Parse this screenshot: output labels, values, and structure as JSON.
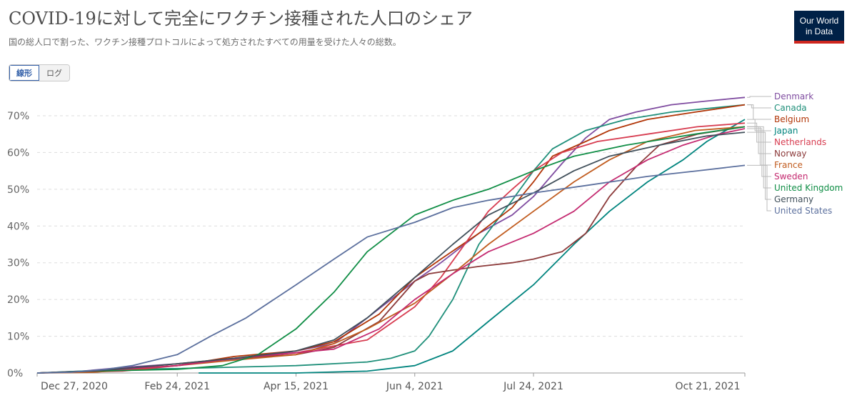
{
  "header": {
    "title": "COVID-19に対して完全にワクチン接種された人口のシェア",
    "subtitle": "国の総人口で割った、ワクチン接種プロトコルによって処方されたすべての用量を受けた人々の総数。",
    "logo_line1": "Our World",
    "logo_line2": "in Data",
    "logo_bg": "#002147",
    "logo_accent": "#ce261e"
  },
  "scale_toggle": {
    "linear_label": "線形",
    "log_label": "ログ",
    "active": "linear"
  },
  "chart_data": {
    "type": "line",
    "title": "COVID-19に対して完全にワクチン接種された人口のシェア",
    "xlabel": "",
    "ylabel": "",
    "x_range": [
      "2020-12-27",
      "2021-10-21"
    ],
    "ylim": [
      0,
      0.75
    ],
    "y_ticks": [
      0,
      0.1,
      0.2,
      0.3,
      0.4,
      0.5,
      0.6,
      0.7
    ],
    "y_tick_labels": [
      "0%",
      "10%",
      "20%",
      "30%",
      "40%",
      "50%",
      "60%",
      "70%"
    ],
    "x_ticks": [
      "2020-12-27",
      "2021-02-24",
      "2021-04-15",
      "2021-06-04",
      "2021-07-24",
      "2021-10-21"
    ],
    "x_tick_labels": [
      "Dec 27, 2020",
      "Feb 24, 2021",
      "Apr 15, 2021",
      "Jun 4, 2021",
      "Jul 24, 2021",
      "Oct 21, 2021"
    ],
    "grid": "horizontal-dashed",
    "legend_position": "right",
    "series": [
      {
        "name": "Denmark",
        "color": "#7f4ca0",
        "points": [
          [
            "2020-12-27",
            0
          ],
          [
            "2021-01-15",
            0.005
          ],
          [
            "2021-02-01",
            0.015
          ],
          [
            "2021-02-24",
            0.025
          ],
          [
            "2021-03-15",
            0.035
          ],
          [
            "2021-04-01",
            0.045
          ],
          [
            "2021-04-15",
            0.06
          ],
          [
            "2021-05-01",
            0.08
          ],
          [
            "2021-05-15",
            0.15
          ],
          [
            "2021-06-04",
            0.25
          ],
          [
            "2021-06-15",
            0.3
          ],
          [
            "2021-07-01",
            0.38
          ],
          [
            "2021-07-15",
            0.43
          ],
          [
            "2021-07-24",
            0.48
          ],
          [
            "2021-08-05",
            0.57
          ],
          [
            "2021-08-15",
            0.64
          ],
          [
            "2021-08-25",
            0.69
          ],
          [
            "2021-09-05",
            0.71
          ],
          [
            "2021-09-20",
            0.73
          ],
          [
            "2021-10-05",
            0.74
          ],
          [
            "2021-10-21",
            0.75
          ]
        ]
      },
      {
        "name": "Canada",
        "color": "#1f8f7a",
        "points": [
          [
            "2020-12-27",
            0
          ],
          [
            "2021-02-01",
            0.01
          ],
          [
            "2021-02-24",
            0.012
          ],
          [
            "2021-04-15",
            0.02
          ],
          [
            "2021-05-15",
            0.03
          ],
          [
            "2021-05-25",
            0.04
          ],
          [
            "2021-06-04",
            0.06
          ],
          [
            "2021-06-10",
            0.1
          ],
          [
            "2021-06-20",
            0.2
          ],
          [
            "2021-07-01",
            0.35
          ],
          [
            "2021-07-15",
            0.47
          ],
          [
            "2021-07-24",
            0.55
          ],
          [
            "2021-08-01",
            0.61
          ],
          [
            "2021-08-15",
            0.66
          ],
          [
            "2021-09-01",
            0.69
          ],
          [
            "2021-09-20",
            0.71
          ],
          [
            "2021-10-21",
            0.73
          ]
        ]
      },
      {
        "name": "Belgium",
        "color": "#b13507",
        "points": [
          [
            "2020-12-27",
            0
          ],
          [
            "2021-01-20",
            0.005
          ],
          [
            "2021-02-24",
            0.02
          ],
          [
            "2021-03-20",
            0.045
          ],
          [
            "2021-04-15",
            0.06
          ],
          [
            "2021-05-01",
            0.085
          ],
          [
            "2021-05-20",
            0.16
          ],
          [
            "2021-06-04",
            0.26
          ],
          [
            "2021-06-15",
            0.31
          ],
          [
            "2021-07-01",
            0.38
          ],
          [
            "2021-07-15",
            0.45
          ],
          [
            "2021-07-24",
            0.52
          ],
          [
            "2021-08-01",
            0.59
          ],
          [
            "2021-08-15",
            0.63
          ],
          [
            "2021-08-25",
            0.66
          ],
          [
            "2021-09-10",
            0.69
          ],
          [
            "2021-09-30",
            0.71
          ],
          [
            "2021-10-21",
            0.73
          ]
        ]
      },
      {
        "name": "Japan",
        "color": "#00847e",
        "points": [
          [
            "2021-03-05",
            0
          ],
          [
            "2021-04-15",
            0.0
          ],
          [
            "2021-05-15",
            0.005
          ],
          [
            "2021-06-04",
            0.02
          ],
          [
            "2021-06-20",
            0.06
          ],
          [
            "2021-07-05",
            0.14
          ],
          [
            "2021-07-24",
            0.24
          ],
          [
            "2021-08-10",
            0.35
          ],
          [
            "2021-08-25",
            0.44
          ],
          [
            "2021-09-10",
            0.52
          ],
          [
            "2021-09-25",
            0.58
          ],
          [
            "2021-10-05",
            0.63
          ],
          [
            "2021-10-21",
            0.69
          ]
        ]
      },
      {
        "name": "Netherlands",
        "color": "#d73c50",
        "points": [
          [
            "2020-12-27",
            0
          ],
          [
            "2021-02-01",
            0.005
          ],
          [
            "2021-02-24",
            0.02
          ],
          [
            "2021-03-20",
            0.04
          ],
          [
            "2021-04-15",
            0.055
          ],
          [
            "2021-05-15",
            0.09
          ],
          [
            "2021-06-04",
            0.18
          ],
          [
            "2021-06-15",
            0.26
          ],
          [
            "2021-06-25",
            0.35
          ],
          [
            "2021-07-05",
            0.44
          ],
          [
            "2021-07-15",
            0.5
          ],
          [
            "2021-07-24",
            0.55
          ],
          [
            "2021-08-05",
            0.6
          ],
          [
            "2021-08-20",
            0.63
          ],
          [
            "2021-09-10",
            0.65
          ],
          [
            "2021-10-01",
            0.67
          ],
          [
            "2021-10-21",
            0.68
          ]
        ]
      },
      {
        "name": "Norway",
        "color": "#8c3a3a",
        "points": [
          [
            "2020-12-27",
            0
          ],
          [
            "2021-01-20",
            0.005
          ],
          [
            "2021-02-24",
            0.025
          ],
          [
            "2021-03-20",
            0.04
          ],
          [
            "2021-04-15",
            0.05
          ],
          [
            "2021-05-01",
            0.07
          ],
          [
            "2021-05-20",
            0.14
          ],
          [
            "2021-06-04",
            0.25
          ],
          [
            "2021-06-10",
            0.27
          ],
          [
            "2021-06-20",
            0.28
          ],
          [
            "2021-07-01",
            0.29
          ],
          [
            "2021-07-15",
            0.3
          ],
          [
            "2021-07-24",
            0.31
          ],
          [
            "2021-08-05",
            0.33
          ],
          [
            "2021-08-15",
            0.38
          ],
          [
            "2021-08-25",
            0.48
          ],
          [
            "2021-09-05",
            0.56
          ],
          [
            "2021-09-15",
            0.62
          ],
          [
            "2021-10-01",
            0.65
          ],
          [
            "2021-10-21",
            0.67
          ]
        ]
      },
      {
        "name": "France",
        "color": "#c15c1f",
        "points": [
          [
            "2020-12-27",
            0
          ],
          [
            "2021-01-20",
            0.002
          ],
          [
            "2021-02-24",
            0.02
          ],
          [
            "2021-03-20",
            0.035
          ],
          [
            "2021-04-15",
            0.05
          ],
          [
            "2021-05-01",
            0.08
          ],
          [
            "2021-05-15",
            0.12
          ],
          [
            "2021-06-04",
            0.19
          ],
          [
            "2021-06-20",
            0.27
          ],
          [
            "2021-07-05",
            0.35
          ],
          [
            "2021-07-24",
            0.44
          ],
          [
            "2021-08-10",
            0.52
          ],
          [
            "2021-08-25",
            0.58
          ],
          [
            "2021-09-10",
            0.63
          ],
          [
            "2021-09-30",
            0.66
          ],
          [
            "2021-10-21",
            0.67
          ]
        ]
      },
      {
        "name": "Sweden",
        "color": "#c42a70",
        "points": [
          [
            "2020-12-27",
            0
          ],
          [
            "2021-01-20",
            0.005
          ],
          [
            "2021-02-24",
            0.02
          ],
          [
            "2021-03-20",
            0.04
          ],
          [
            "2021-04-15",
            0.055
          ],
          [
            "2021-05-01",
            0.065
          ],
          [
            "2021-05-20",
            0.12
          ],
          [
            "2021-06-04",
            0.2
          ],
          [
            "2021-06-20",
            0.27
          ],
          [
            "2021-07-05",
            0.33
          ],
          [
            "2021-07-24",
            0.38
          ],
          [
            "2021-08-10",
            0.44
          ],
          [
            "2021-08-25",
            0.52
          ],
          [
            "2021-09-10",
            0.58
          ],
          [
            "2021-09-25",
            0.62
          ],
          [
            "2021-10-10",
            0.65
          ],
          [
            "2021-10-21",
            0.665
          ]
        ]
      },
      {
        "name": "United Kingdom",
        "color": "#0f8d45",
        "points": [
          [
            "2020-12-27",
            0
          ],
          [
            "2021-01-20",
            0.005
          ],
          [
            "2021-02-24",
            0.01
          ],
          [
            "2021-03-15",
            0.02
          ],
          [
            "2021-03-30",
            0.05
          ],
          [
            "2021-04-15",
            0.12
          ],
          [
            "2021-05-01",
            0.22
          ],
          [
            "2021-05-15",
            0.33
          ],
          [
            "2021-06-04",
            0.43
          ],
          [
            "2021-06-20",
            0.47
          ],
          [
            "2021-07-05",
            0.5
          ],
          [
            "2021-07-24",
            0.55
          ],
          [
            "2021-08-10",
            0.59
          ],
          [
            "2021-09-01",
            0.62
          ],
          [
            "2021-09-30",
            0.65
          ],
          [
            "2021-10-21",
            0.67
          ]
        ]
      },
      {
        "name": "Germany",
        "color": "#404f5a",
        "points": [
          [
            "2020-12-27",
            0
          ],
          [
            "2021-01-20",
            0.005
          ],
          [
            "2021-02-24",
            0.025
          ],
          [
            "2021-03-20",
            0.04
          ],
          [
            "2021-04-15",
            0.06
          ],
          [
            "2021-05-01",
            0.09
          ],
          [
            "2021-05-15",
            0.15
          ],
          [
            "2021-06-04",
            0.26
          ],
          [
            "2021-06-20",
            0.35
          ],
          [
            "2021-07-05",
            0.43
          ],
          [
            "2021-07-24",
            0.49
          ],
          [
            "2021-08-10",
            0.55
          ],
          [
            "2021-08-25",
            0.59
          ],
          [
            "2021-09-15",
            0.62
          ],
          [
            "2021-10-05",
            0.645
          ],
          [
            "2021-10-21",
            0.655
          ]
        ]
      },
      {
        "name": "United States",
        "color": "#5b6f9d",
        "points": [
          [
            "2020-12-27",
            0
          ],
          [
            "2021-01-10",
            0.002
          ],
          [
            "2021-01-25",
            0.01
          ],
          [
            "2021-02-05",
            0.02
          ],
          [
            "2021-02-24",
            0.05
          ],
          [
            "2021-03-10",
            0.1
          ],
          [
            "2021-03-25",
            0.15
          ],
          [
            "2021-04-15",
            0.24
          ],
          [
            "2021-05-01",
            0.31
          ],
          [
            "2021-05-15",
            0.37
          ],
          [
            "2021-06-04",
            0.41
          ],
          [
            "2021-06-20",
            0.45
          ],
          [
            "2021-07-05",
            0.47
          ],
          [
            "2021-07-24",
            0.49
          ],
          [
            "2021-08-15",
            0.51
          ],
          [
            "2021-09-10",
            0.535
          ],
          [
            "2021-10-01",
            0.55
          ],
          [
            "2021-10-21",
            0.565
          ]
        ]
      }
    ]
  }
}
